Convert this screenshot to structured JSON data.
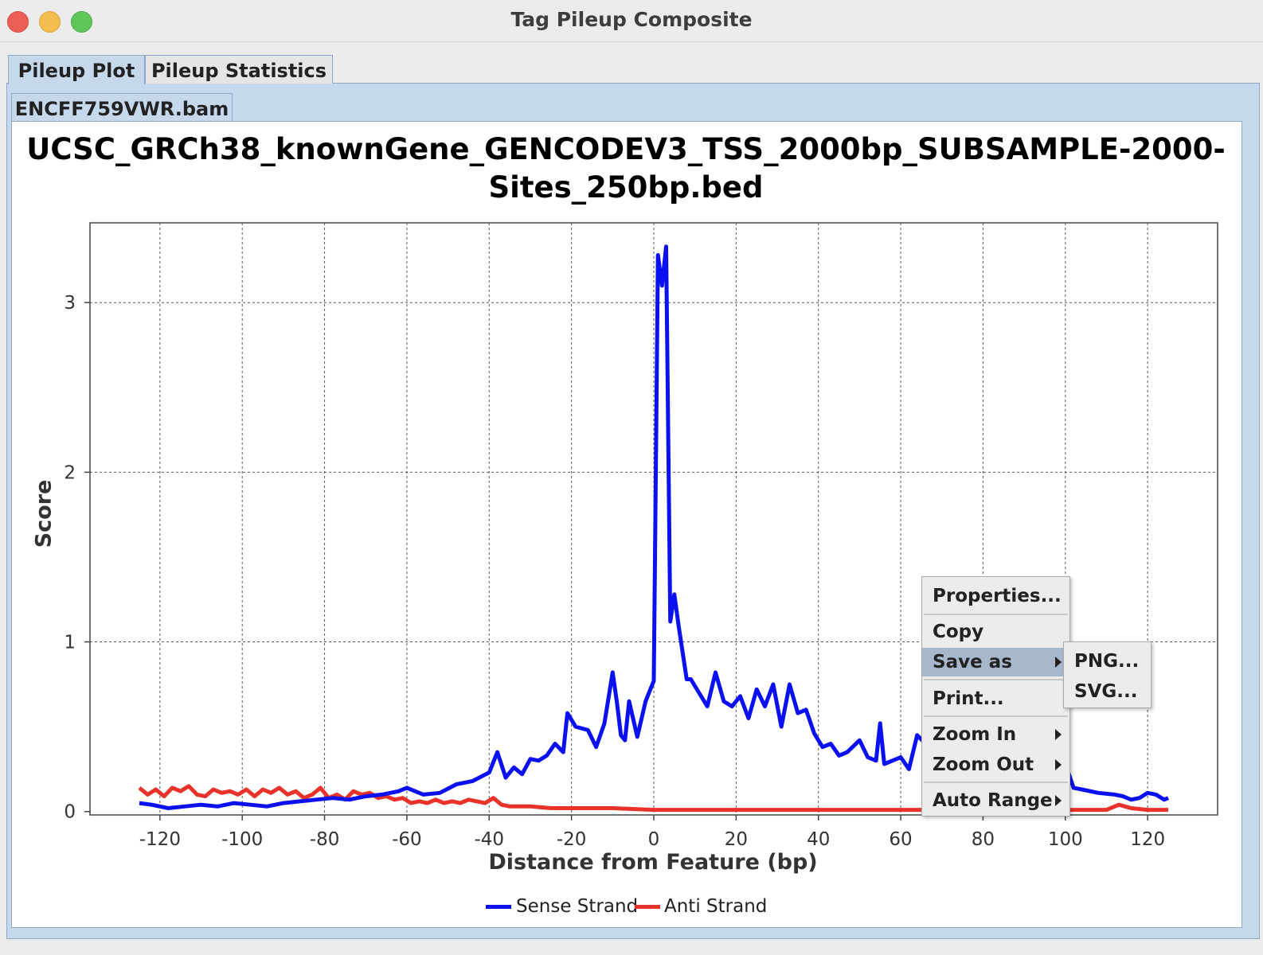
{
  "window": {
    "title": "Tag Pileup Composite"
  },
  "tabs": [
    {
      "label": "Pileup Plot"
    },
    {
      "label": "Pileup Statistics"
    }
  ],
  "subtabs": [
    {
      "label": "ENCFF759VWR.bam"
    }
  ],
  "context_menu": {
    "items": [
      "Properties...",
      "Copy",
      "Save as",
      "Print...",
      "Zoom In",
      "Zoom Out",
      "Auto Range"
    ],
    "submenu": [
      "PNG...",
      "SVG..."
    ]
  },
  "colors": {
    "sense": "#0a10f0",
    "anti": "#e8322a",
    "tab_blue": "#c6d8ec"
  },
  "chart_data": {
    "type": "line",
    "title_line1": "UCSC_GRCh38_knownGene_GENCODEV3_TSS_2000bp_SUBSAMPLE-2000-",
    "title_line2": "Sites_250bp.bed",
    "xlabel": "Distance from Feature (bp)",
    "ylabel": "Score",
    "xlim": [
      -137,
      137
    ],
    "ylim": [
      -0.02,
      3.47
    ],
    "xticks": [
      -120,
      -100,
      -80,
      -60,
      -40,
      -20,
      0,
      20,
      40,
      60,
      80,
      100,
      120
    ],
    "yticks": [
      0,
      1,
      2,
      3
    ],
    "legend": [
      "Sense Strand",
      "Anti Strand"
    ],
    "series": [
      {
        "name": "Sense Strand",
        "x": [
          -125,
          -122,
          -118,
          -114,
          -110,
          -106,
          -102,
          -98,
          -94,
          -90,
          -86,
          -82,
          -78,
          -74,
          -70,
          -66,
          -62,
          -60,
          -56,
          -52,
          -48,
          -44,
          -40,
          -38,
          -36,
          -34,
          -32,
          -30,
          -28,
          -26,
          -24,
          -22,
          -21,
          -19,
          -16,
          -14,
          -12,
          -10,
          -9,
          -8,
          -7,
          -6,
          -4,
          -2,
          0,
          1,
          2,
          3,
          4,
          5,
          6,
          8,
          9,
          11,
          13,
          15,
          17,
          19,
          21,
          23,
          25,
          27,
          29,
          31,
          33,
          35,
          37,
          39,
          41,
          43,
          45,
          47,
          50,
          52,
          54,
          55,
          56,
          58,
          60,
          62,
          64,
          66,
          68,
          70,
          72,
          74,
          76,
          78,
          80,
          85,
          90,
          95,
          100,
          102,
          104,
          108,
          112,
          114,
          116,
          118,
          120,
          122,
          124,
          125
        ],
        "values": [
          0.05,
          0.04,
          0.02,
          0.03,
          0.04,
          0.03,
          0.05,
          0.04,
          0.03,
          0.05,
          0.06,
          0.07,
          0.08,
          0.07,
          0.09,
          0.1,
          0.12,
          0.14,
          0.1,
          0.11,
          0.16,
          0.18,
          0.23,
          0.35,
          0.2,
          0.26,
          0.22,
          0.31,
          0.3,
          0.33,
          0.4,
          0.35,
          0.58,
          0.5,
          0.48,
          0.38,
          0.52,
          0.82,
          0.65,
          0.45,
          0.42,
          0.65,
          0.44,
          0.65,
          0.77,
          3.28,
          3.1,
          3.33,
          1.12,
          1.28,
          1.1,
          0.78,
          0.78,
          0.7,
          0.62,
          0.82,
          0.65,
          0.62,
          0.68,
          0.55,
          0.72,
          0.62,
          0.75,
          0.5,
          0.75,
          0.58,
          0.6,
          0.46,
          0.38,
          0.4,
          0.33,
          0.35,
          0.42,
          0.32,
          0.3,
          0.52,
          0.28,
          0.3,
          0.32,
          0.25,
          0.45,
          0.4,
          0.38,
          0.35,
          0.3,
          0.28,
          0.3,
          0.28,
          0.25,
          0.22,
          0.2,
          0.2,
          0.28,
          0.14,
          0.13,
          0.11,
          0.1,
          0.09,
          0.07,
          0.08,
          0.11,
          0.1,
          0.07,
          0.08
        ]
      },
      {
        "name": "Anti Strand",
        "x": [
          -125,
          -123,
          -121,
          -119,
          -117,
          -115,
          -113,
          -111,
          -109,
          -107,
          -105,
          -103,
          -101,
          -99,
          -97,
          -95,
          -93,
          -91,
          -89,
          -87,
          -85,
          -83,
          -81,
          -79,
          -77,
          -75,
          -73,
          -71,
          -69,
          -67,
          -65,
          -63,
          -61,
          -59,
          -57,
          -55,
          -53,
          -51,
          -49,
          -47,
          -45,
          -43,
          -41,
          -39,
          -37,
          -35,
          -30,
          -25,
          -20,
          -10,
          0,
          20,
          40,
          60,
          80,
          100,
          110,
          113,
          116,
          120,
          125
        ],
        "values": [
          0.14,
          0.1,
          0.13,
          0.09,
          0.14,
          0.12,
          0.15,
          0.1,
          0.09,
          0.13,
          0.11,
          0.12,
          0.1,
          0.13,
          0.09,
          0.13,
          0.11,
          0.14,
          0.1,
          0.12,
          0.08,
          0.1,
          0.14,
          0.08,
          0.1,
          0.07,
          0.12,
          0.1,
          0.11,
          0.08,
          0.09,
          0.07,
          0.08,
          0.05,
          0.06,
          0.05,
          0.07,
          0.05,
          0.06,
          0.05,
          0.07,
          0.06,
          0.05,
          0.08,
          0.04,
          0.03,
          0.03,
          0.02,
          0.02,
          0.02,
          0.01,
          0.01,
          0.01,
          0.01,
          0.01,
          0.01,
          0.01,
          0.04,
          0.02,
          0.01,
          0.01
        ]
      }
    ]
  }
}
